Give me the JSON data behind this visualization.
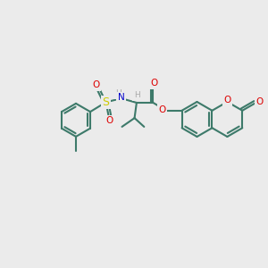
{
  "bg": "#ebebeb",
  "bc": "#3d7a6a",
  "bw": 1.5,
  "OC": "#dd0000",
  "NC": "#0000cc",
  "SC": "#cccc00",
  "HC": "#aaaaaa",
  "fs": 7.5,
  "figsize": [
    3.0,
    3.0
  ],
  "dpi": 100,
  "xlim": [
    0,
    10
  ],
  "ylim": [
    0,
    10
  ]
}
